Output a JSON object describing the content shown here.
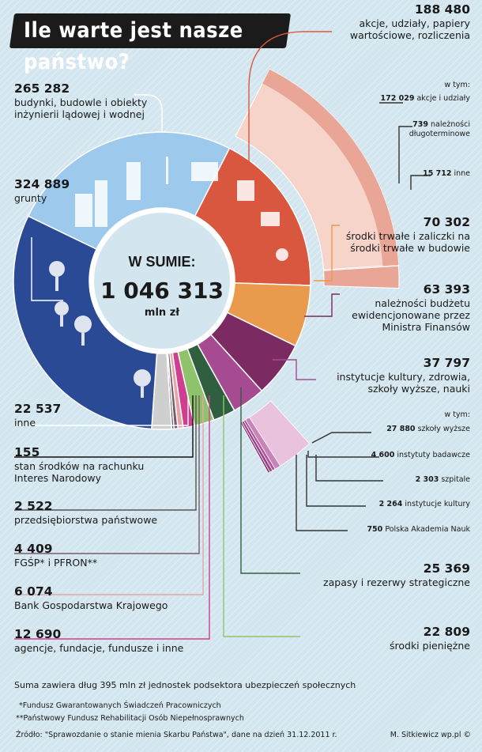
{
  "title": "Ile warte jest nasze państwo?",
  "total": {
    "label": "W SUMIE:",
    "value": "1 046 313",
    "unit": "mln zł"
  },
  "labels": {
    "l0": {
      "value": "188 480",
      "text": "akcje, udziały, papiery wartościowe, rozliczenia"
    },
    "l1": {
      "value": "70 302",
      "text": "środki trwałe i zaliczki na środki trwałe w budowie"
    },
    "l2": {
      "value": "63 393",
      "text": "należności budżetu ewidencjonowane przez Ministra Finansów"
    },
    "l3": {
      "value": "37 797",
      "text": "instytucje kultury, zdrowia, szkoły wyższe, nauki"
    },
    "l4": {
      "value": "25 369",
      "text": "zapasy i rezerwy strategiczne"
    },
    "l5": {
      "value": "22 809",
      "text": "środki pieniężne"
    },
    "l6": {
      "value": "12 690",
      "text": "agencje, fundacje, fundusze i inne"
    },
    "l7": {
      "value": "6 074",
      "text": "Bank Gospodarstwa Krajowego"
    },
    "l8": {
      "value": "4 409",
      "text": "FGŚP* i PFRON**"
    },
    "l9": {
      "value": "2 522",
      "text": "przedsiębiorstwa państwowe"
    },
    "l10": {
      "value": "155",
      "text": "stan środków na rachunku Interes Narodowy"
    },
    "l11": {
      "value": "22 537",
      "text": "inne"
    },
    "l12": {
      "value": "324 889",
      "text": "grunty"
    },
    "l13": {
      "value": "265 282",
      "text": "budynki, budowle i obiekty inżynierii lądowej i wodnej"
    }
  },
  "breakdown_a": {
    "intro": "w tym:",
    "items": [
      {
        "value": "172 029",
        "text": "akcje i udziały"
      },
      {
        "value": "739",
        "text": "należności długoterminowe"
      },
      {
        "value": "15 712",
        "text": "inne"
      }
    ]
  },
  "breakdown_b": {
    "intro": "w tym:",
    "items": [
      {
        "value": "27 880",
        "text": "szkoły wyższe"
      },
      {
        "value": "4 600",
        "text": "instytuty badawcze"
      },
      {
        "value": "2 303",
        "text": "szpitale"
      },
      {
        "value": "2 264",
        "text": "instytucje kultury"
      },
      {
        "value": "750",
        "text": "Polska Akademia Nauk"
      }
    ]
  },
  "note": "Suma zawiera dług 395 mln zł jednostek podsektora ubezpieczeń społecznych",
  "footnote1": "*Fundusz Gwarantowanych Świadczeń Pracowniczych",
  "footnote2": "**Państwowy Fundusz Rehabilitacji Osób Niepełnosprawnych",
  "source": "Źródło: \"Sprawozdanie o stanie mienia Skarbu Państwa\", dane na dzień 31.12.2011 r.",
  "author": "M. Sitkiewicz wp.pl ©",
  "colors": {
    "akcje": "#d9573f",
    "srodki_trwale": "#e99a4c",
    "naleznosci": "#7b2a62",
    "instytucje": "#a64b91",
    "zapasy": "#2f5f3f",
    "pieniezne": "#8fc36b",
    "agencje": "#cf3e8f",
    "bgk": "#e6a5a5",
    "fgsp": "#7a5b6b",
    "przeds": "#555555",
    "interes": "#111111",
    "inne": "#cfcfcf",
    "grunty": "#2a4a96",
    "budynki": "#9dc9ec"
  },
  "chart_data": {
    "type": "pie",
    "title": "Ile warte jest nasze państwo?",
    "unit": "mln zł",
    "total": 1046313,
    "categories": [
      "akcje, udziały, papiery wartościowe, rozliczenia",
      "środki trwałe i zaliczki na środki trwałe w budowie",
      "należności budżetu ewidencjonowane przez Ministra Finansów",
      "instytucje kultury, zdrowia, szkoły wyższe, nauki",
      "zapasy i rezerwy strategiczne",
      "środki pieniężne",
      "agencje, fundacje, fundusze i inne",
      "Bank Gospodarstwa Krajowego",
      "FGŚP* i PFRON**",
      "przedsiębiorstwa państwowe",
      "stan środków na rachunku Interes Narodowy",
      "inne",
      "grunty",
      "budynki, budowle i obiekty inżynierii lądowej i wodnej"
    ],
    "values": [
      188480,
      70302,
      63393,
      37797,
      25369,
      22809,
      12690,
      6074,
      4409,
      2522,
      155,
      22537,
      324889,
      265282
    ],
    "breakdowns": [
      {
        "parent": "akcje, udziały, papiery wartościowe, rozliczenia",
        "categories": [
          "akcje i udziały",
          "należności długoterminowe",
          "inne"
        ],
        "values": [
          172029,
          739,
          15712
        ]
      },
      {
        "parent": "instytucje kultury, zdrowia, szkoły wyższe, nauki",
        "categories": [
          "szkoły wyższe",
          "instytuty badawcze",
          "szpitale",
          "instytucje kultury",
          "Polska Akademia Nauk"
        ],
        "values": [
          27880,
          4600,
          2303,
          2264,
          750
        ]
      }
    ]
  }
}
